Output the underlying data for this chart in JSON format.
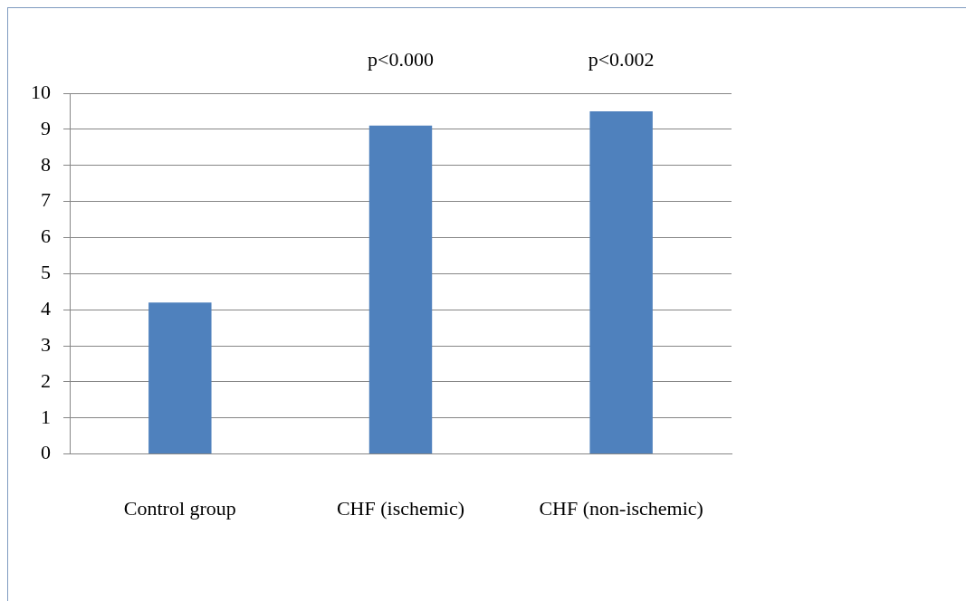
{
  "chart_data": {
    "type": "bar",
    "categories": [
      "Control group",
      "CHF (ischemic)",
      "CHF (non-ischemic)"
    ],
    "values": [
      4.2,
      9.1,
      9.5
    ],
    "color": "#4f81bd",
    "ylim": [
      0,
      10
    ],
    "yticks": [
      0,
      1,
      2,
      3,
      4,
      5,
      6,
      7,
      8,
      9,
      10
    ],
    "grid": "y",
    "legend": false,
    "annotations": [
      "p<0.000",
      "p<0.002"
    ]
  }
}
